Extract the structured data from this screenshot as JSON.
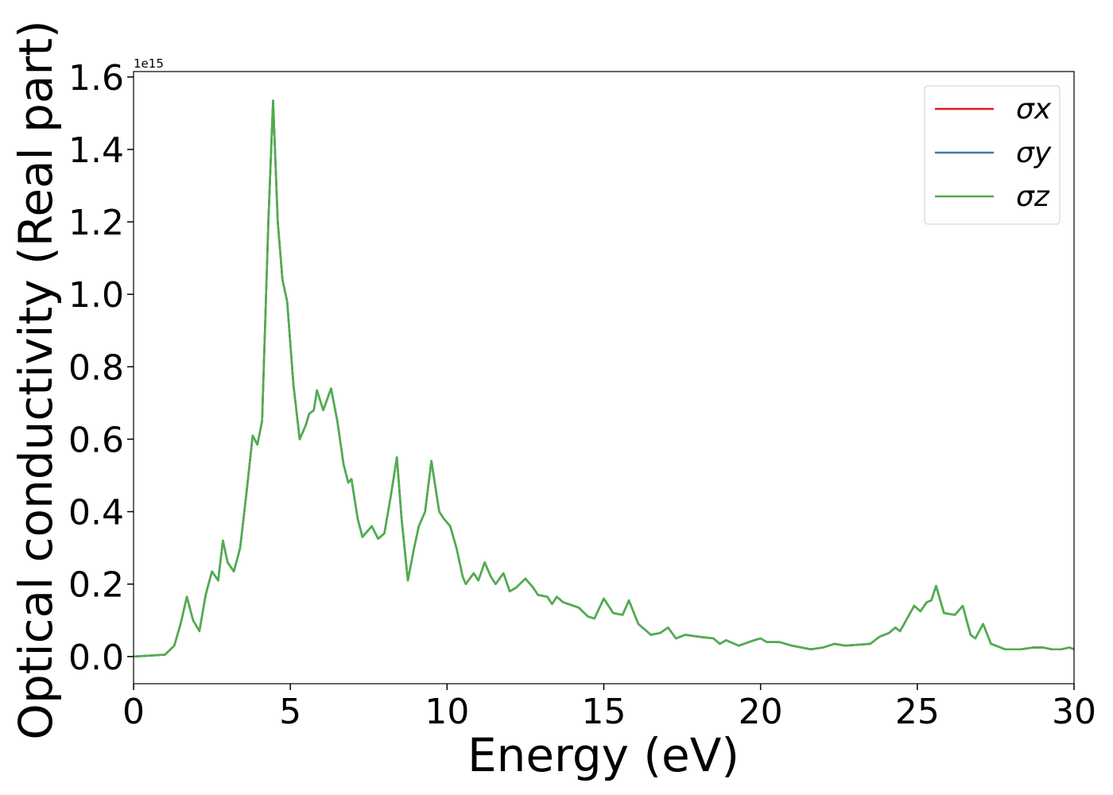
{
  "chart_data": {
    "type": "line",
    "xlabel": "Energy (eV)",
    "ylabel": "Optical conductivity (Real part)",
    "y_offset_label": "1e15",
    "xlim": [
      0,
      30
    ],
    "ylim": [
      -0.075,
      1.615
    ],
    "xticks": [
      0,
      5,
      10,
      15,
      20,
      25,
      30
    ],
    "yticks": [
      {
        "value": 0,
        "label": "0.0"
      },
      0.2,
      0.4,
      0.6,
      0.8,
      {
        "value": 1,
        "label": "1.0"
      },
      1.2,
      1.4,
      1.6
    ],
    "grid": false,
    "legend": "upper right",
    "x": [
      0,
      1.0,
      1.3,
      1.5,
      1.7,
      1.9,
      2.1,
      2.3,
      2.5,
      2.7,
      2.85,
      3.0,
      3.2,
      3.4,
      3.6,
      3.8,
      3.95,
      4.1,
      4.3,
      4.45,
      4.6,
      4.75,
      4.9,
      5.1,
      5.3,
      5.5,
      5.6,
      5.75,
      5.85,
      6.05,
      6.3,
      6.5,
      6.7,
      6.85,
      6.95,
      7.15,
      7.3,
      7.6,
      7.8,
      8.0,
      8.2,
      8.4,
      8.55,
      8.75,
      8.95,
      9.1,
      9.3,
      9.5,
      9.75,
      9.9,
      10.1,
      10.3,
      10.5,
      10.6,
      10.85,
      11.0,
      11.2,
      11.4,
      11.55,
      11.8,
      12.0,
      12.2,
      12.5,
      12.75,
      12.9,
      13.2,
      13.35,
      13.5,
      13.7,
      14.2,
      14.5,
      14.7,
      15.0,
      15.3,
      15.6,
      15.8,
      16.1,
      16.5,
      16.8,
      17.05,
      17.3,
      17.6,
      18.0,
      18.5,
      18.7,
      18.9,
      19.3,
      19.8,
      20.0,
      20.2,
      20.6,
      21.0,
      21.6,
      22.0,
      22.35,
      22.7,
      23.5,
      23.8,
      24.1,
      24.3,
      24.45,
      24.9,
      25.1,
      25.3,
      25.45,
      25.6,
      25.85,
      26.2,
      26.45,
      26.7,
      26.85,
      27.1,
      27.35,
      27.8,
      28.3,
      28.7,
      29.0,
      29.3,
      29.6,
      29.85,
      30
    ],
    "series": [
      {
        "name": "σx",
        "color": "#e41a1c",
        "values": [
          0,
          0.005,
          0.03,
          0.09,
          0.165,
          0.1,
          0.07,
          0.17,
          0.235,
          0.21,
          0.32,
          0.26,
          0.235,
          0.3,
          0.45,
          0.61,
          0.585,
          0.65,
          1.2,
          1.535,
          1.2,
          1.04,
          0.98,
          0.75,
          0.6,
          0.64,
          0.67,
          0.68,
          0.735,
          0.68,
          0.74,
          0.65,
          0.53,
          0.48,
          0.49,
          0.38,
          0.33,
          0.36,
          0.325,
          0.34,
          0.44,
          0.55,
          0.38,
          0.21,
          0.3,
          0.36,
          0.4,
          0.54,
          0.4,
          0.38,
          0.36,
          0.3,
          0.22,
          0.2,
          0.23,
          0.21,
          0.26,
          0.22,
          0.2,
          0.23,
          0.18,
          0.19,
          0.215,
          0.19,
          0.17,
          0.165,
          0.145,
          0.165,
          0.15,
          0.135,
          0.11,
          0.105,
          0.16,
          0.12,
          0.115,
          0.155,
          0.09,
          0.06,
          0.065,
          0.08,
          0.05,
          0.06,
          0.055,
          0.05,
          0.035,
          0.045,
          0.03,
          0.045,
          0.05,
          0.04,
          0.04,
          0.03,
          0.02,
          0.025,
          0.035,
          0.03,
          0.035,
          0.055,
          0.065,
          0.08,
          0.07,
          0.14,
          0.125,
          0.15,
          0.155,
          0.195,
          0.12,
          0.115,
          0.14,
          0.06,
          0.05,
          0.09,
          0.035,
          0.02,
          0.02,
          0.025,
          0.025,
          0.02,
          0.02,
          0.025,
          0.02
        ]
      },
      {
        "name": "σy",
        "color": "#377eb8",
        "values": [
          0,
          0.005,
          0.03,
          0.09,
          0.165,
          0.1,
          0.07,
          0.17,
          0.235,
          0.21,
          0.32,
          0.26,
          0.235,
          0.3,
          0.45,
          0.61,
          0.585,
          0.65,
          1.2,
          1.535,
          1.2,
          1.04,
          0.98,
          0.75,
          0.6,
          0.64,
          0.67,
          0.68,
          0.735,
          0.68,
          0.74,
          0.65,
          0.53,
          0.48,
          0.49,
          0.38,
          0.33,
          0.36,
          0.325,
          0.34,
          0.44,
          0.55,
          0.38,
          0.21,
          0.3,
          0.36,
          0.4,
          0.54,
          0.4,
          0.38,
          0.36,
          0.3,
          0.22,
          0.2,
          0.23,
          0.21,
          0.26,
          0.22,
          0.2,
          0.23,
          0.18,
          0.19,
          0.215,
          0.19,
          0.17,
          0.165,
          0.145,
          0.165,
          0.15,
          0.135,
          0.11,
          0.105,
          0.16,
          0.12,
          0.115,
          0.155,
          0.09,
          0.06,
          0.065,
          0.08,
          0.05,
          0.06,
          0.055,
          0.05,
          0.035,
          0.045,
          0.03,
          0.045,
          0.05,
          0.04,
          0.04,
          0.03,
          0.02,
          0.025,
          0.035,
          0.03,
          0.035,
          0.055,
          0.065,
          0.08,
          0.07,
          0.14,
          0.125,
          0.15,
          0.155,
          0.195,
          0.12,
          0.115,
          0.14,
          0.06,
          0.05,
          0.09,
          0.035,
          0.02,
          0.02,
          0.025,
          0.025,
          0.02,
          0.02,
          0.025,
          0.02
        ]
      },
      {
        "name": "σz",
        "color": "#4daf4a",
        "values": [
          0,
          0.005,
          0.03,
          0.09,
          0.165,
          0.1,
          0.07,
          0.17,
          0.235,
          0.21,
          0.32,
          0.26,
          0.235,
          0.3,
          0.45,
          0.61,
          0.585,
          0.65,
          1.2,
          1.535,
          1.2,
          1.04,
          0.98,
          0.75,
          0.6,
          0.64,
          0.67,
          0.68,
          0.735,
          0.68,
          0.74,
          0.65,
          0.53,
          0.48,
          0.49,
          0.38,
          0.33,
          0.36,
          0.325,
          0.34,
          0.44,
          0.55,
          0.38,
          0.21,
          0.3,
          0.36,
          0.4,
          0.54,
          0.4,
          0.38,
          0.36,
          0.3,
          0.22,
          0.2,
          0.23,
          0.21,
          0.26,
          0.22,
          0.2,
          0.23,
          0.18,
          0.19,
          0.215,
          0.19,
          0.17,
          0.165,
          0.145,
          0.165,
          0.15,
          0.135,
          0.11,
          0.105,
          0.16,
          0.12,
          0.115,
          0.155,
          0.09,
          0.06,
          0.065,
          0.08,
          0.05,
          0.06,
          0.055,
          0.05,
          0.035,
          0.045,
          0.03,
          0.045,
          0.05,
          0.04,
          0.04,
          0.03,
          0.02,
          0.025,
          0.035,
          0.03,
          0.035,
          0.055,
          0.065,
          0.08,
          0.07,
          0.14,
          0.125,
          0.15,
          0.155,
          0.195,
          0.12,
          0.115,
          0.14,
          0.06,
          0.05,
          0.09,
          0.035,
          0.02,
          0.02,
          0.025,
          0.025,
          0.02,
          0.02,
          0.025,
          0.02
        ]
      }
    ]
  }
}
